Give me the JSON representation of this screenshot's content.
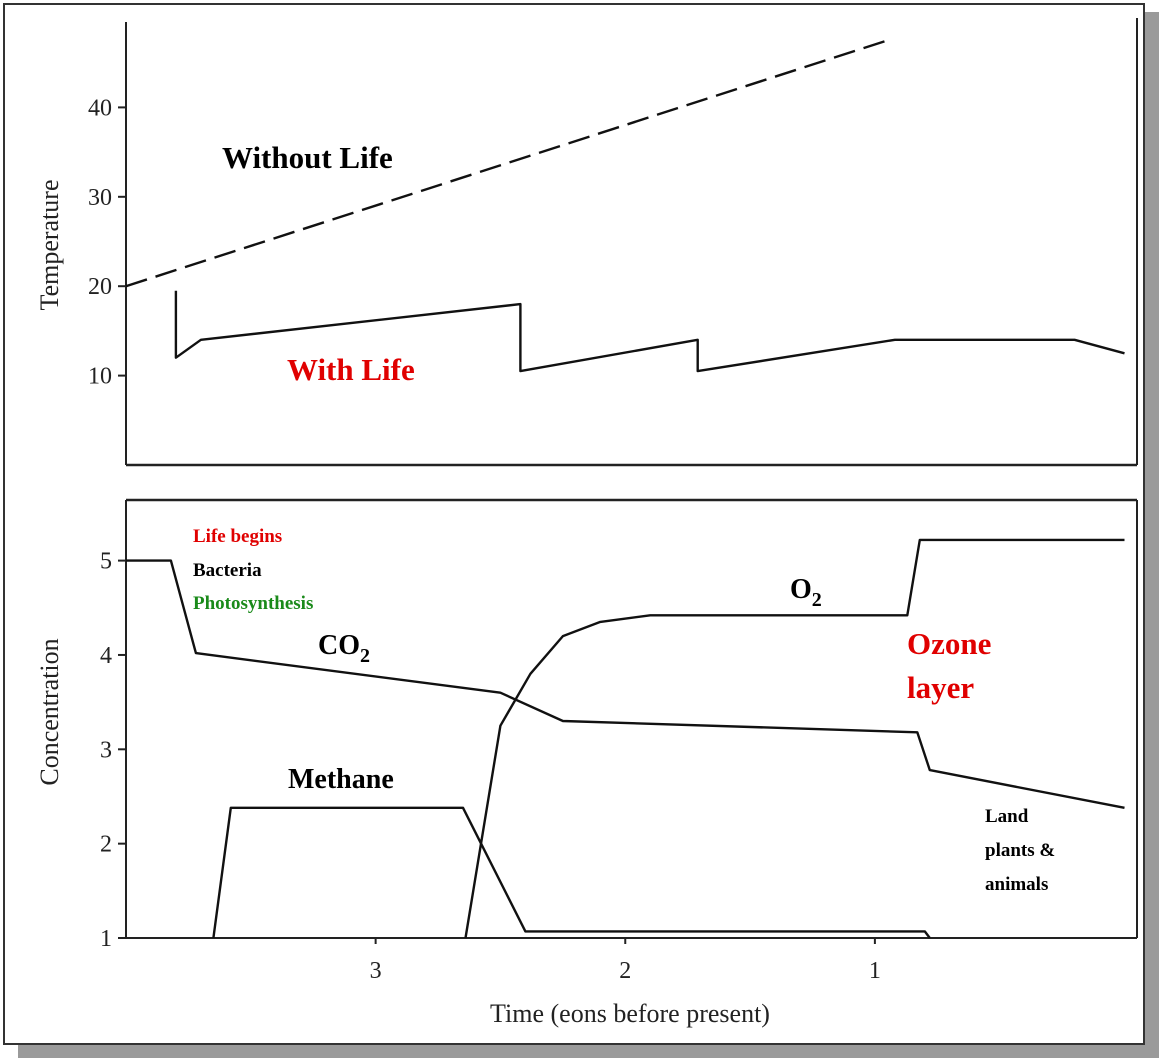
{
  "chart_data": [
    {
      "type": "line",
      "title": "",
      "ylabel": "Temperature",
      "xlabel": "",
      "xlim": [
        4.0,
        -0.05
      ],
      "ylim": [
        0,
        50
      ],
      "yticks": [
        10,
        20,
        30,
        40
      ],
      "grid": false,
      "series": [
        {
          "name": "Without Life",
          "style": "dashed",
          "x": [
            4.0,
            0.95
          ],
          "y": [
            20.0,
            47.5
          ]
        },
        {
          "name": "With Life",
          "style": "solid",
          "x": [
            3.8,
            3.8,
            3.7,
            2.42,
            2.42,
            1.71,
            1.71,
            0.92,
            0.2,
            0.0
          ],
          "y": [
            19.5,
            12.0,
            14.0,
            18.0,
            10.5,
            14.0,
            10.5,
            14.0,
            14.0,
            12.5
          ]
        }
      ],
      "annotations": [
        {
          "text": "Without Life",
          "color": "#000000"
        },
        {
          "text": "With Life",
          "color": "#e00000"
        }
      ]
    },
    {
      "type": "line",
      "title": "",
      "ylabel": "Concentration",
      "xlabel": "Time (eons before present)",
      "xlim": [
        4.0,
        -0.05
      ],
      "ylim": [
        1,
        5.6
      ],
      "xticks": [
        3,
        2,
        1
      ],
      "yticks": [
        1,
        2,
        3,
        4,
        5
      ],
      "grid": false,
      "series": [
        {
          "name": "CO2",
          "x": [
            4.0,
            3.82,
            3.72,
            2.5,
            2.25,
            0.83,
            0.78,
            0.0
          ],
          "y": [
            5.0,
            5.0,
            4.02,
            3.6,
            3.3,
            3.18,
            2.78,
            2.38
          ]
        },
        {
          "name": "O2",
          "x": [
            2.64,
            2.5,
            2.38,
            2.25,
            2.1,
            1.9,
            0.87,
            0.82,
            0.0
          ],
          "y": [
            1.0,
            3.25,
            3.8,
            4.2,
            4.35,
            4.42,
            4.42,
            5.22,
            5.22
          ]
        },
        {
          "name": "Methane",
          "x": [
            3.65,
            3.58,
            2.65,
            2.4,
            0.8,
            0.78
          ],
          "y": [
            1.0,
            2.38,
            2.38,
            1.07,
            1.07,
            1.0
          ]
        }
      ],
      "annotations": [
        {
          "text": "Life begins",
          "color": "#e00000"
        },
        {
          "text": "Bacteria",
          "color": "#000000"
        },
        {
          "text": "Photosynthesis",
          "color": "#1a8a1a"
        },
        {
          "text": "Ozone",
          "color": "#e00000"
        },
        {
          "text": "layer",
          "color": "#e00000"
        },
        {
          "text": "Land",
          "color": "#000000"
        },
        {
          "text": "plants &",
          "color": "#000000"
        },
        {
          "text": "animals",
          "color": "#000000"
        }
      ]
    }
  ],
  "labels": {
    "co2_main": "CO",
    "co2_sub": "2",
    "o2_main": "O",
    "o2_sub": "2",
    "methane": "Methane"
  }
}
